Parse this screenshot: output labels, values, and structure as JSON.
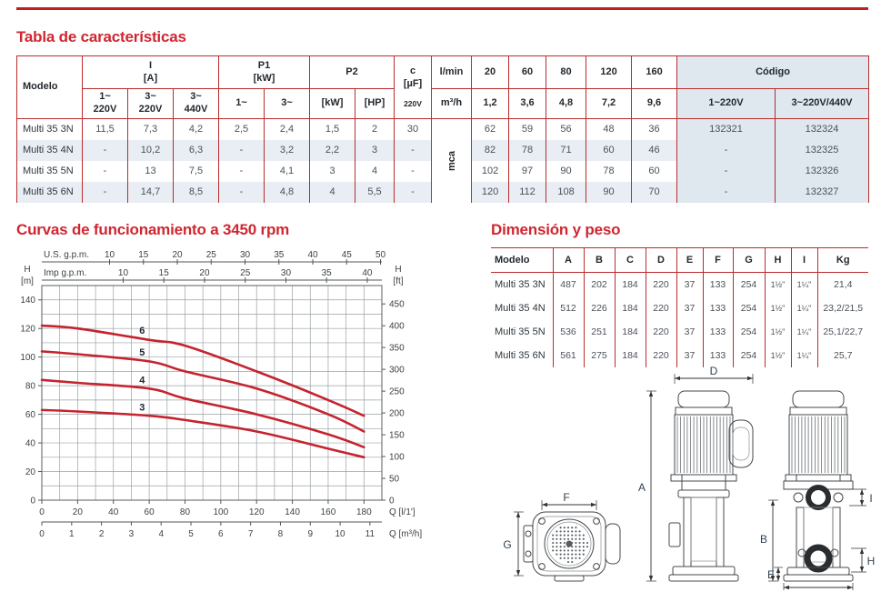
{
  "colors": {
    "accent_red": "#cf2731",
    "rule_red": "#c2201f",
    "table_border_red": "#b92d2e",
    "zebra_row": "#e9eef4",
    "codigo_bg": "#dfe8ef",
    "curve_red": "#c5232d"
  },
  "sections": {
    "characteristics_title": "Tabla de características",
    "curves_title": "Curvas de funcionamiento a 3450 rpm",
    "dimensions_title": "Dimensión y peso"
  },
  "char_table": {
    "header": {
      "modelo": "Modelo",
      "current": {
        "title": "I",
        "unit": "[A]",
        "subs": [
          {
            "l1": "1~",
            "l2": "220V"
          },
          {
            "l1": "3~",
            "l2": "220V"
          },
          {
            "l1": "3~",
            "l2": "440V"
          }
        ]
      },
      "p1": {
        "title": "P1",
        "unit": "[kW]",
        "subs": [
          {
            "l1": "1~"
          },
          {
            "l1": "3~"
          }
        ]
      },
      "p2": {
        "title": "P2",
        "subs": [
          {
            "l1": "[kW]"
          },
          {
            "l1": "[HP]"
          }
        ]
      },
      "cap": {
        "l1": "c",
        "l2": "[µF]",
        "l3": "220V"
      },
      "flow": {
        "r1": "l/min",
        "r2": "m³/h"
      },
      "flow_lmin": [
        "20",
        "60",
        "80",
        "120",
        "160"
      ],
      "flow_m3h": [
        "1,2",
        "3,6",
        "4,8",
        "7,2",
        "9,6"
      ],
      "codigo": {
        "title": "Código",
        "c1": "1~220V",
        "c2": "3~220V/440V"
      }
    },
    "mca_label": "mca",
    "rows": [
      {
        "model": "Multi 35 3N",
        "electrical": [
          "11,5",
          "7,3",
          "4,2",
          "2,5",
          "2,4",
          "1,5",
          "2",
          "30"
        ],
        "heads": [
          "62",
          "59",
          "56",
          "48",
          "36"
        ],
        "codes": [
          "132321",
          "132324"
        ]
      },
      {
        "model": "Multi 35 4N",
        "electrical": [
          "-",
          "10,2",
          "6,3",
          "-",
          "3,2",
          "2,2",
          "3",
          "-"
        ],
        "heads": [
          "82",
          "78",
          "71",
          "60",
          "46"
        ],
        "codes": [
          "-",
          "132325"
        ]
      },
      {
        "model": "Multi 35 5N",
        "electrical": [
          "-",
          "13",
          "7,5",
          "-",
          "4,1",
          "3",
          "4",
          "-"
        ],
        "heads": [
          "102",
          "97",
          "90",
          "78",
          "60"
        ],
        "codes": [
          "-",
          "132326"
        ]
      },
      {
        "model": "Multi 35 6N",
        "electrical": [
          "-",
          "14,7",
          "8,5",
          "-",
          "4,8",
          "4",
          "5,5",
          "-"
        ],
        "heads": [
          "120",
          "112",
          "108",
          "90",
          "70"
        ],
        "codes": [
          "-",
          "132327"
        ]
      }
    ]
  },
  "dim_table": {
    "headers": [
      "Modelo",
      "A",
      "B",
      "C",
      "D",
      "E",
      "F",
      "G",
      "H",
      "I",
      "Kg"
    ],
    "rows": [
      [
        "Multi 35 3N",
        "487",
        "202",
        "184",
        "220",
        "37",
        "133",
        "254",
        "1½\"",
        "1¼\"",
        "21,4"
      ],
      [
        "Multi 35 4N",
        "512",
        "226",
        "184",
        "220",
        "37",
        "133",
        "254",
        "1½\"",
        "1¼\"",
        "23,2/21,5"
      ],
      [
        "Multi 35 5N",
        "536",
        "251",
        "184",
        "220",
        "37",
        "133",
        "254",
        "1½\"",
        "1¼\"",
        "25,1/22,7"
      ],
      [
        "Multi 35 6N",
        "561",
        "275",
        "184",
        "220",
        "37",
        "133",
        "254",
        "1½\"",
        "1¼\"",
        "25,7"
      ]
    ]
  },
  "chart_data": {
    "type": "line",
    "title": "Curvas de funcionamiento a 3450 rpm",
    "curve_color": "#c5232d",
    "grid": true,
    "top_axes": [
      {
        "label": "U.S. g.p.m.",
        "ticks": [
          10,
          15,
          20,
          25,
          30,
          35,
          40,
          45,
          50
        ],
        "lmin_per_unit": 3.785
      },
      {
        "label": "Imp g.p.m.",
        "ticks": [
          10,
          15,
          20,
          25,
          30,
          35,
          40
        ],
        "lmin_per_unit": 4.546
      }
    ],
    "x_axis": {
      "label": "Q [l/1']",
      "ticks": [
        0,
        20,
        40,
        60,
        80,
        100,
        120,
        140,
        160,
        180
      ],
      "max": 190,
      "grid_step": 10
    },
    "x_axis2": {
      "label": "Q [m³/h]",
      "ticks": [
        0,
        1,
        2,
        3,
        4,
        5,
        6,
        7,
        8,
        9,
        10,
        11
      ],
      "lmin_per_unit": 16.6667
    },
    "y_axis": {
      "label": "H",
      "unit": "[m]",
      "ticks": [
        0,
        20,
        40,
        60,
        80,
        100,
        120,
        140
      ],
      "max": 150,
      "grid_step": 10
    },
    "y_axis_right": {
      "label": "H",
      "unit": "[ft]",
      "ticks": [
        0,
        50,
        100,
        150,
        200,
        250,
        300,
        350,
        400,
        450
      ],
      "m_per_unit": 0.3048
    },
    "series": [
      {
        "name": "6",
        "points": [
          [
            0,
            122
          ],
          [
            20,
            120
          ],
          [
            60,
            112
          ],
          [
            80,
            108
          ],
          [
            120,
            90
          ],
          [
            160,
            70
          ],
          [
            180,
            59
          ]
        ]
      },
      {
        "name": "5",
        "points": [
          [
            0,
            104
          ],
          [
            20,
            102
          ],
          [
            60,
            97
          ],
          [
            80,
            90
          ],
          [
            120,
            78
          ],
          [
            160,
            60
          ],
          [
            180,
            48
          ]
        ]
      },
      {
        "name": "4",
        "points": [
          [
            0,
            84
          ],
          [
            20,
            82
          ],
          [
            60,
            78
          ],
          [
            80,
            71
          ],
          [
            120,
            60
          ],
          [
            160,
            46
          ],
          [
            180,
            37
          ]
        ]
      },
      {
        "name": "3",
        "points": [
          [
            0,
            63
          ],
          [
            20,
            62
          ],
          [
            60,
            59
          ],
          [
            80,
            56
          ],
          [
            120,
            48
          ],
          [
            160,
            36
          ],
          [
            180,
            30
          ]
        ]
      }
    ]
  },
  "drawing_labels": {
    "plan_width": "F",
    "plan_height": "G",
    "total_height": "A",
    "top_width": "D",
    "port_top": "I",
    "pump_height": "B",
    "base_height": "E",
    "port_bottom": "H"
  }
}
